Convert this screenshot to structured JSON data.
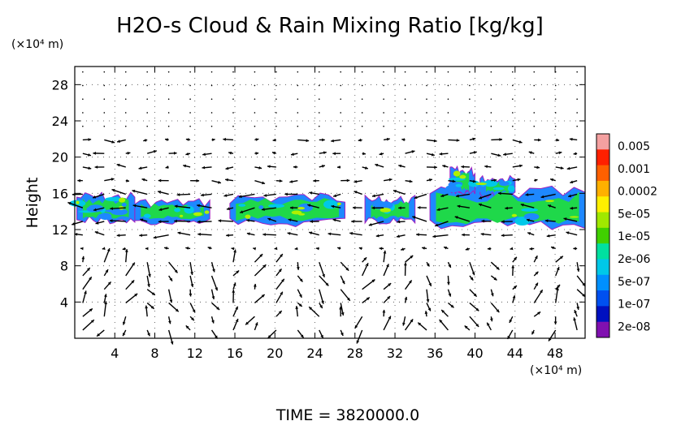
{
  "chart_data": {
    "type": "heatmap",
    "title": "H2O-s Cloud & Rain Mixing Ratio [kg/kg]",
    "ylabel": "Height",
    "y_unit": "(×10⁴ m)",
    "x_unit": "(×10⁴ m)",
    "x_ticks": [
      "4",
      "8",
      "12",
      "16",
      "20",
      "24",
      "28",
      "32",
      "36",
      "40",
      "44",
      "48"
    ],
    "y_ticks": [
      "4",
      "8",
      "12",
      "16",
      "20",
      "24",
      "28"
    ],
    "xlim": [
      0,
      51
    ],
    "ylim": [
      0,
      30
    ],
    "grid": true,
    "overlay": "wind vectors",
    "colorbar": {
      "labels": [
        "0.005",
        "0.001",
        "0.0002",
        "5e-05",
        "1e-05",
        "2e-06",
        "5e-07",
        "1e-07",
        "2e-08"
      ],
      "colors": [
        "#f4a0a0",
        "#ff2000",
        "#ff6000",
        "#ffb000",
        "#fff000",
        "#a0e800",
        "#40d000",
        "#00e0a0",
        "#00c8e8",
        "#0090ff",
        "#0050f0",
        "#0010c0",
        "#8010b0"
      ]
    },
    "cloud_band": {
      "bottom_km": 12,
      "top_km": 16.5,
      "segments": [
        {
          "x0": 0.2,
          "x1": 6,
          "y0": 12.6,
          "y1": 16.2
        },
        {
          "x0": 6,
          "x1": 13.5,
          "y0": 12.5,
          "y1": 15.5
        },
        {
          "x0": 15.5,
          "x1": 27,
          "y0": 12.3,
          "y1": 16.2
        },
        {
          "x0": 29,
          "x1": 34,
          "y0": 12.6,
          "y1": 15.8
        },
        {
          "x0": 35.5,
          "x1": 51,
          "y0": 12.0,
          "y1": 16.8
        }
      ],
      "towers": [
        {
          "x0": 37.5,
          "x1": 40,
          "y0": 15.5,
          "y1": 19.0
        },
        {
          "x0": 40.5,
          "x1": 44,
          "y0": 15.5,
          "y1": 18.0
        }
      ]
    }
  },
  "footer": {
    "time_label": "TIME = 3820000.0"
  }
}
